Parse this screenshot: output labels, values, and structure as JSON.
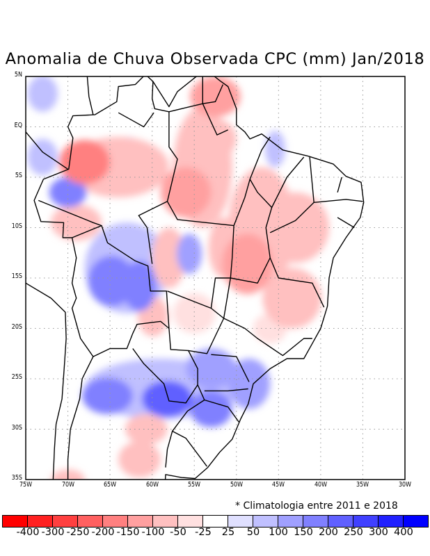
{
  "title": "Anomalia de Chuva Observada CPC (mm) Jan/2018",
  "note": "* Climatologia entre 2011 e 2018",
  "map": {
    "lon_range": [
      -75,
      -30
    ],
    "lat_range": [
      -35,
      5
    ],
    "lat_labels": [
      "5N",
      "EQ",
      "5S",
      "10S",
      "15S",
      "20S",
      "25S",
      "30S",
      "35S"
    ],
    "lon_labels": [
      "75W",
      "70W",
      "65W",
      "60W",
      "55W",
      "50W",
      "45W",
      "40W",
      "35W",
      "30W"
    ]
  },
  "colorbar": {
    "colors": [
      "#ff0000",
      "#ff2020",
      "#ff4040",
      "#ff6060",
      "#ff8080",
      "#ffa0a0",
      "#ffc0c0",
      "#ffe0e0",
      "#ffffff",
      "#e0e0ff",
      "#c0c0ff",
      "#a0a0ff",
      "#8080ff",
      "#6060ff",
      "#4040ff",
      "#2020ff",
      "#0000ff"
    ],
    "labels": [
      "-400",
      "-300",
      "-250",
      "-200",
      "-150",
      "-100",
      "-50",
      "-25",
      "25",
      "50",
      "100",
      "150",
      "200",
      "250",
      "300",
      "400"
    ]
  },
  "anomaly_regions": [
    {
      "lon": -68,
      "lat": -3.5,
      "rlon": 3,
      "rlat": 2.2,
      "value": -200
    },
    {
      "lon": -64,
      "lat": -4,
      "rlon": 6,
      "rlat": 3,
      "value": -75
    },
    {
      "lon": -61.5,
      "lat": -4.6,
      "rlon": 2.5,
      "rlat": 2,
      "value": -100
    },
    {
      "lon": -56,
      "lat": -6.5,
      "rlon": 3,
      "rlat": 2.5,
      "value": -150
    },
    {
      "lon": -54,
      "lat": -4,
      "rlon": 3.5,
      "rlat": 6,
      "value": -75
    },
    {
      "lon": -52.5,
      "lat": -1.2,
      "rlon": 2.5,
      "rlat": 2,
      "value": -100
    },
    {
      "lon": -52.5,
      "lat": 3,
      "rlon": 3,
      "rlat": 2,
      "value": -150
    },
    {
      "lon": -70,
      "lat": -6.5,
      "rlon": 2.2,
      "rlat": 1.5,
      "value": 150
    },
    {
      "lon": -69,
      "lat": -9.5,
      "rlon": 3,
      "rlat": 1.8,
      "value": -100
    },
    {
      "lon": -64.8,
      "lat": -15.3,
      "rlon": 2.8,
      "rlat": 2.5,
      "value": 150
    },
    {
      "lon": -61.5,
      "lat": -15.8,
      "rlon": 2,
      "rlat": 2.5,
      "value": 150
    },
    {
      "lon": -63,
      "lat": -14,
      "rlon": 5,
      "rlat": 4.5,
      "value": 50
    },
    {
      "lon": -48.7,
      "lat": -13.6,
      "rlon": 3,
      "rlat": 3,
      "value": -150
    },
    {
      "lon": -47,
      "lat": -10,
      "rlon": 4,
      "rlat": 6,
      "value": -75
    },
    {
      "lon": -43.4,
      "lat": -17,
      "rlon": 3.5,
      "rlat": 3,
      "value": -75
    },
    {
      "lon": -43,
      "lat": -10,
      "rlon": 4,
      "rlat": 3.5,
      "value": -75
    },
    {
      "lon": -51.5,
      "lat": -12,
      "rlon": 1.8,
      "rlat": 3,
      "value": -100
    },
    {
      "lon": -55.6,
      "lat": -12.6,
      "rlon": 1.5,
      "rlat": 2,
      "value": 100
    },
    {
      "lon": -58,
      "lat": -13,
      "rlon": 2,
      "rlat": 3,
      "value": -75
    },
    {
      "lon": -53,
      "lat": -24,
      "rlon": 3,
      "rlat": 2,
      "value": 100
    },
    {
      "lon": -48.5,
      "lat": -25.5,
      "rlon": 2.5,
      "rlat": 2.5,
      "value": 100
    },
    {
      "lon": -65.3,
      "lat": -26.7,
      "rlon": 3,
      "rlat": 1.8,
      "value": 150
    },
    {
      "lon": -58.2,
      "lat": -27,
      "rlon": 3,
      "rlat": 1.8,
      "value": 200
    },
    {
      "lon": -53,
      "lat": -28,
      "rlon": 2.5,
      "rlat": 1.8,
      "value": 150
    },
    {
      "lon": -59,
      "lat": -26,
      "rlon": 9,
      "rlat": 3,
      "value": 50
    },
    {
      "lon": -60.7,
      "lat": -30,
      "rlon": 2.5,
      "rlat": 1.5,
      "value": -75
    },
    {
      "lon": -61.5,
      "lat": -33,
      "rlon": 2.5,
      "rlat": 1.8,
      "value": -75
    },
    {
      "lon": -59.9,
      "lat": -18.8,
      "rlon": 1.8,
      "rlat": 2,
      "value": -75
    },
    {
      "lon": -55,
      "lat": -18.5,
      "rlon": 2.5,
      "rlat": 2,
      "value": -50
    },
    {
      "lon": -73,
      "lat": 3.3,
      "rlon": 1.8,
      "rlat": 1.8,
      "value": 50
    },
    {
      "lon": -73,
      "lat": -3,
      "rlon": 1.8,
      "rlat": 1.8,
      "value": 75
    },
    {
      "lon": -62.8,
      "lat": -2.2,
      "rlon": 1.2,
      "rlat": 1.2,
      "value": 50
    },
    {
      "lon": -45.4,
      "lat": -2.2,
      "rlon": 1.2,
      "rlat": 1.8,
      "value": 75
    },
    {
      "lon": -46,
      "lat": -20,
      "rlon": 2,
      "rlat": 1.5,
      "value": -50
    },
    {
      "lon": -70,
      "lat": -35,
      "rlon": 2,
      "rlat": 1,
      "value": -75
    }
  ]
}
